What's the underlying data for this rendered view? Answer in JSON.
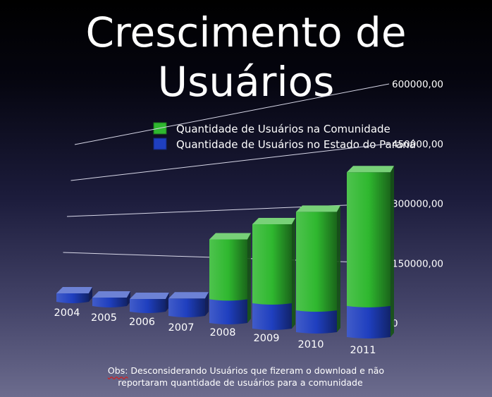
{
  "slide": {
    "title_line1": "Crescimento de",
    "title_line2": "Usuários",
    "note_prefix": "Obs:",
    "note_line1_rest": " Desconsiderando Usuários que fizeram o download e não",
    "note_line2": "reportaram quantidade de usuários para a comunidade"
  },
  "chart_data": {
    "type": "bar",
    "stacked": true,
    "categories": [
      "2004",
      "2005",
      "2006",
      "2007",
      "2008",
      "2009",
      "2010",
      "2011"
    ],
    "series": [
      {
        "name": "Quantidade de Usuários no Estado do Paraná",
        "color": "#1f3fbf",
        "values": [
          10000,
          25000,
          40000,
          55000,
          85000,
          90000,
          75000,
          100000
        ]
      },
      {
        "name": "Quantidade de Usuários na Comunidade",
        "color": "#2fb82f",
        "values": [
          0,
          0,
          0,
          0,
          215000,
          280000,
          340000,
          430000
        ]
      }
    ],
    "ytick_labels": [
      "0",
      "150000,00",
      "300000,00",
      "450000,00",
      "600000,00"
    ],
    "ylim": [
      0,
      600000
    ],
    "grid": true,
    "legend_position": "top"
  }
}
